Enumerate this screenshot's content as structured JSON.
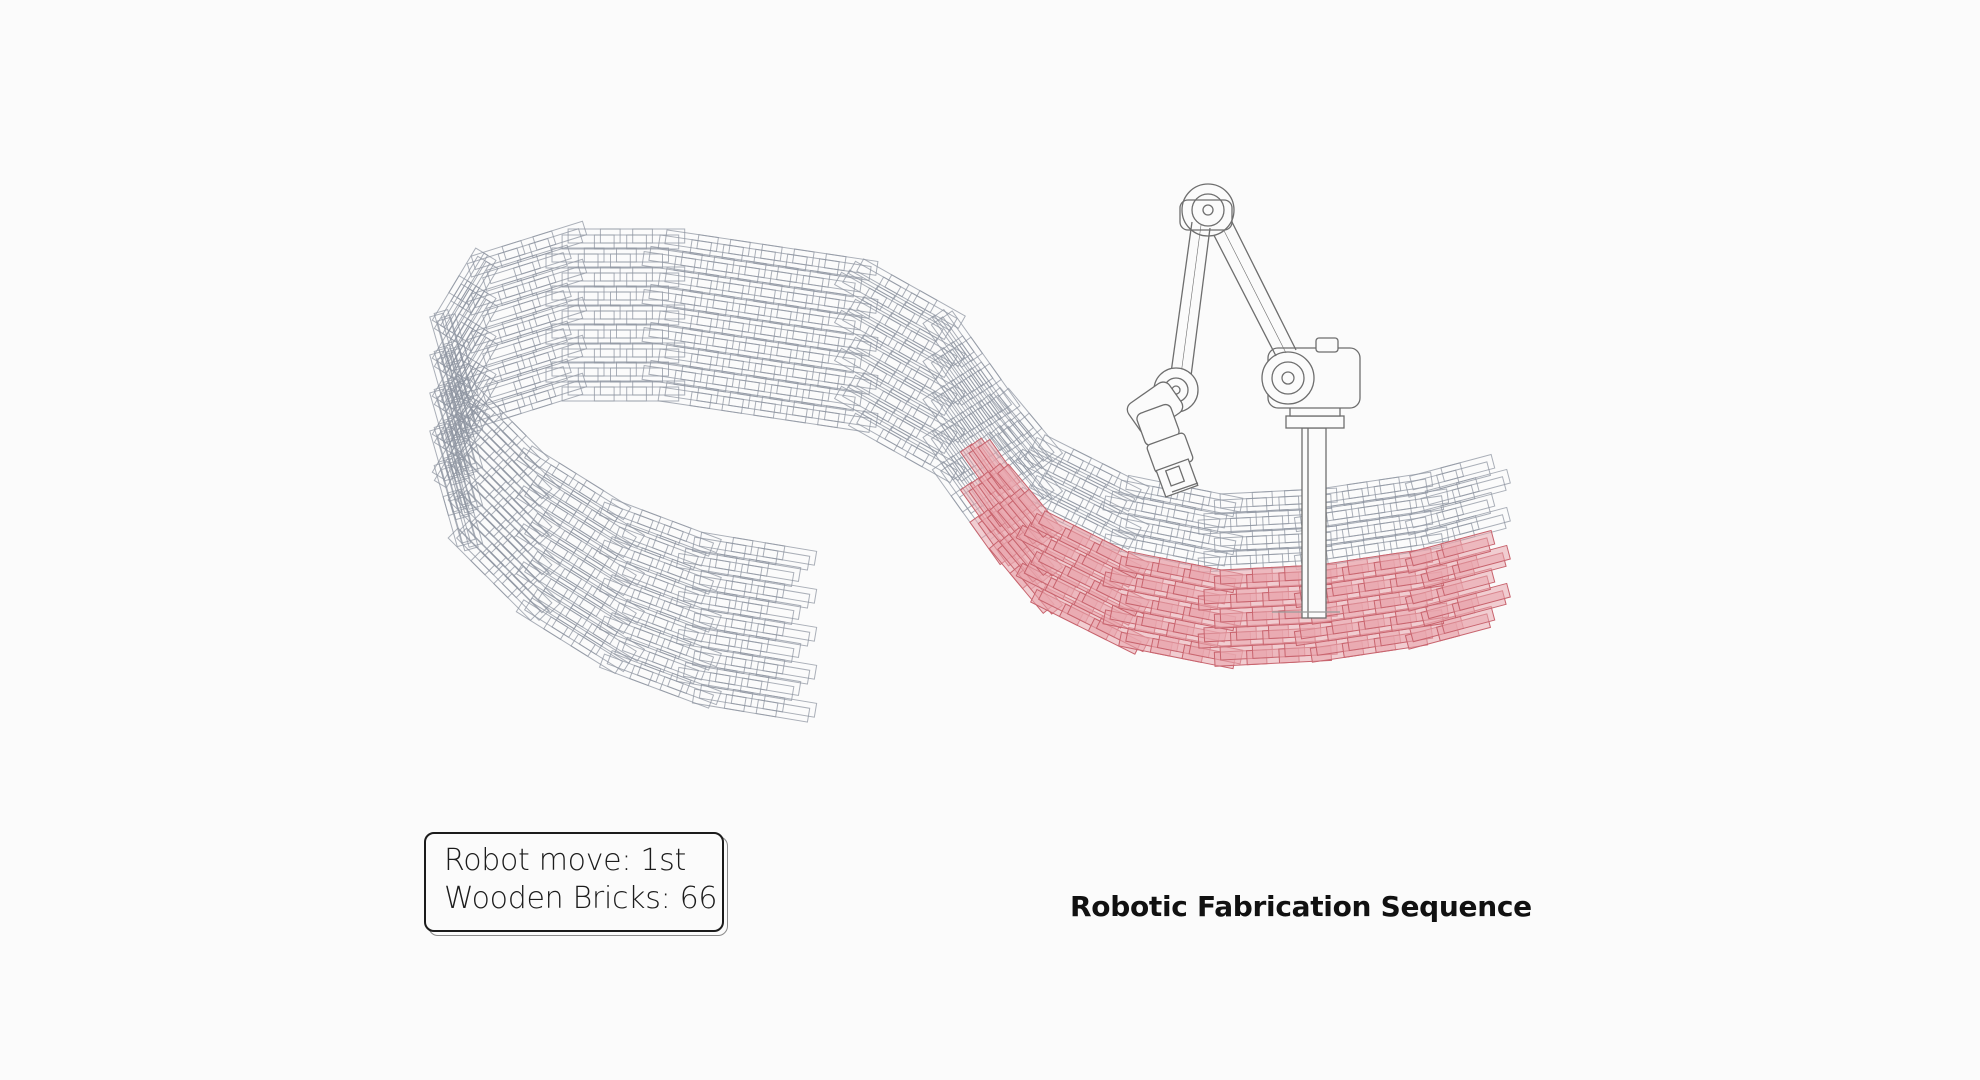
{
  "info_panel": {
    "robot_move": "Robot move: 1st",
    "wooden_bricks": "Wooden Bricks: 66"
  },
  "caption": "Robotic Fabrication Sequence",
  "colors": {
    "background": "#fbfbfb",
    "wireframe": "#8f96a2",
    "placed_fill": "#e9a8ae",
    "placed_stroke": "#c8646e",
    "robot": "#6e6e6e"
  },
  "diagram": {
    "placed_bricks": 66,
    "robot_move_index": 1
  }
}
